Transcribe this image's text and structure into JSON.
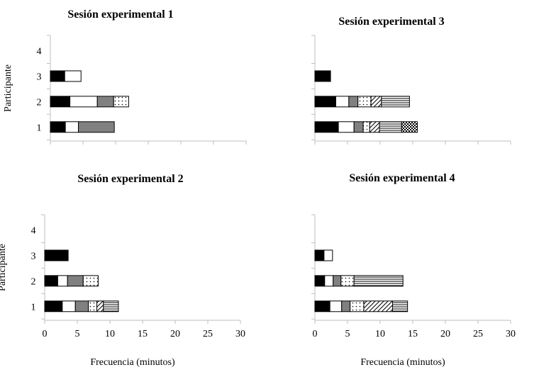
{
  "chart_data": {
    "type": "bar",
    "orientation": "horizontal",
    "stacked": true,
    "x_ticks": [
      0,
      5,
      10,
      15,
      20,
      25,
      30
    ],
    "y_ticks": [
      1,
      2,
      3,
      4
    ],
    "xlabel": "Frecuencia (minutos)",
    "ylabel": "Participante",
    "grid": false,
    "legend": "none",
    "panels": [
      {
        "id": "s1",
        "title": "Sesión experimental 1",
        "show_x_tick_labels": false,
        "show_y_tick_labels": true,
        "show_ylabel": true,
        "show_xlabel": false,
        "xlim": [
          0,
          30
        ],
        "bars": [
          {
            "participant": 1,
            "segments": [
              {
                "value": 2.3,
                "pattern": "black"
              },
              {
                "value": 2.0,
                "pattern": "white"
              },
              {
                "value": 5.5,
                "pattern": "gray"
              }
            ]
          },
          {
            "participant": 2,
            "segments": [
              {
                "value": 3.0,
                "pattern": "black"
              },
              {
                "value": 4.2,
                "pattern": "white"
              },
              {
                "value": 2.5,
                "pattern": "gray"
              },
              {
                "value": 2.3,
                "pattern": "dots"
              }
            ]
          },
          {
            "participant": 3,
            "segments": [
              {
                "value": 2.2,
                "pattern": "black"
              },
              {
                "value": 2.5,
                "pattern": "white"
              }
            ]
          }
        ]
      },
      {
        "id": "s2",
        "title": "Sesión experimental 2",
        "show_x_tick_labels": true,
        "show_y_tick_labels": true,
        "show_ylabel": true,
        "show_xlabel": true,
        "xlim": [
          0,
          30
        ],
        "bars": [
          {
            "participant": 1,
            "segments": [
              {
                "value": 2.7,
                "pattern": "black"
              },
              {
                "value": 2.0,
                "pattern": "white"
              },
              {
                "value": 2.0,
                "pattern": "gray"
              },
              {
                "value": 1.3,
                "pattern": "dots"
              },
              {
                "value": 1.0,
                "pattern": "diagonal"
              },
              {
                "value": 2.3,
                "pattern": "hlines"
              }
            ]
          },
          {
            "participant": 2,
            "segments": [
              {
                "value": 2.0,
                "pattern": "black"
              },
              {
                "value": 1.5,
                "pattern": "white"
              },
              {
                "value": 2.4,
                "pattern": "gray"
              },
              {
                "value": 2.3,
                "pattern": "dots"
              }
            ]
          },
          {
            "participant": 3,
            "segments": [
              {
                "value": 3.6,
                "pattern": "black"
              }
            ]
          }
        ]
      },
      {
        "id": "s3",
        "title": "Sesión experimental 3",
        "show_x_tick_labels": false,
        "show_y_tick_labels": false,
        "show_ylabel": false,
        "show_xlabel": false,
        "xlim": [
          0,
          30
        ],
        "bars": [
          {
            "participant": 1,
            "segments": [
              {
                "value": 3.6,
                "pattern": "black"
              },
              {
                "value": 2.4,
                "pattern": "white"
              },
              {
                "value": 1.4,
                "pattern": "gray"
              },
              {
                "value": 1.0,
                "pattern": "dots"
              },
              {
                "value": 1.5,
                "pattern": "diagonal"
              },
              {
                "value": 3.4,
                "pattern": "hlines"
              },
              {
                "value": 2.4,
                "pattern": "checker"
              }
            ]
          },
          {
            "participant": 2,
            "segments": [
              {
                "value": 3.2,
                "pattern": "black"
              },
              {
                "value": 2.0,
                "pattern": "white"
              },
              {
                "value": 1.4,
                "pattern": "gray"
              },
              {
                "value": 2.0,
                "pattern": "dots"
              },
              {
                "value": 1.6,
                "pattern": "diagonal"
              },
              {
                "value": 4.3,
                "pattern": "hlines"
              }
            ]
          },
          {
            "participant": 3,
            "segments": [
              {
                "value": 2.4,
                "pattern": "black"
              }
            ]
          }
        ]
      },
      {
        "id": "s4",
        "title": "Sesión experimental 4",
        "show_x_tick_labels": true,
        "show_y_tick_labels": false,
        "show_ylabel": false,
        "show_xlabel": true,
        "xlim": [
          0,
          30
        ],
        "bars": [
          {
            "participant": 1,
            "segments": [
              {
                "value": 2.3,
                "pattern": "black"
              },
              {
                "value": 1.8,
                "pattern": "white"
              },
              {
                "value": 1.3,
                "pattern": "gray"
              },
              {
                "value": 2.1,
                "pattern": "dots"
              },
              {
                "value": 4.4,
                "pattern": "diagonal"
              },
              {
                "value": 2.3,
                "pattern": "hlines"
              }
            ]
          },
          {
            "participant": 2,
            "segments": [
              {
                "value": 1.5,
                "pattern": "black"
              },
              {
                "value": 1.3,
                "pattern": "white"
              },
              {
                "value": 1.2,
                "pattern": "gray"
              },
              {
                "value": 2.0,
                "pattern": "dots"
              },
              {
                "value": 7.5,
                "pattern": "hlines"
              }
            ]
          },
          {
            "participant": 3,
            "segments": [
              {
                "value": 1.4,
                "pattern": "black"
              },
              {
                "value": 1.3,
                "pattern": "white"
              }
            ]
          }
        ]
      }
    ]
  }
}
